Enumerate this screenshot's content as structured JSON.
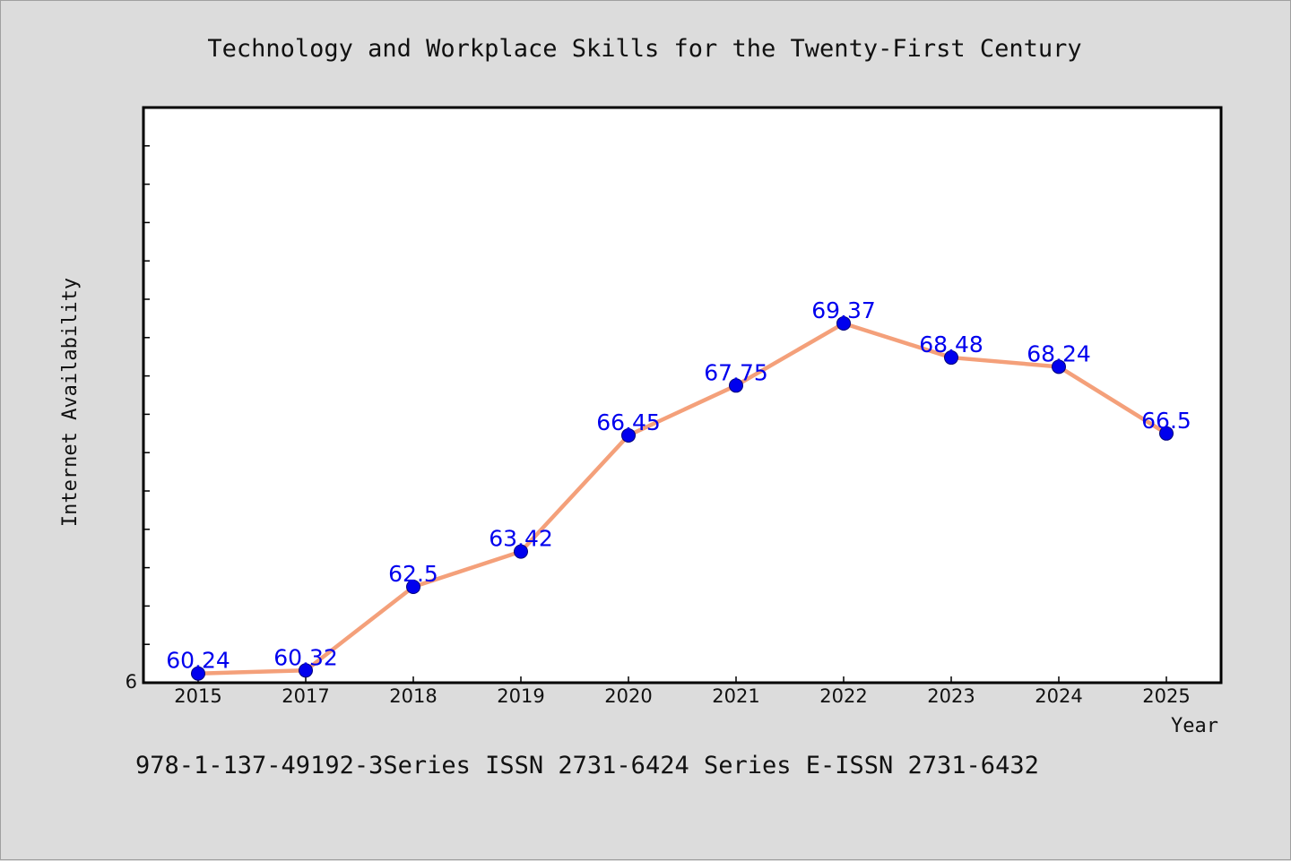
{
  "chart_data": {
    "type": "line",
    "title": "Technology and Workplace Skills for the Twenty-First Century",
    "xlabel": "Year",
    "ylabel": "Internet Availability",
    "categories": [
      "2015",
      "2017",
      "2018",
      "2019",
      "2020",
      "2021",
      "2022",
      "2023",
      "2024",
      "2025"
    ],
    "series": [
      {
        "values": [
          60.24,
          60.32,
          62.5,
          63.42,
          66.45,
          67.75,
          69.37,
          68.48,
          68.24,
          66.5
        ],
        "data_labels": [
          "60.24",
          "60.32",
          "62.5",
          "63.42",
          "66.45",
          "67.75",
          "69.37",
          "68.48",
          "68.24",
          "66.5"
        ]
      }
    ],
    "ylim": [
      60,
      75
    ],
    "y_tick_step": 1,
    "y_tick_label": "6",
    "grid": false,
    "legend": "none",
    "colors": {
      "line": "#f4a07a",
      "marker": "#0000ee",
      "data_label": "#0000ee",
      "plot_background": "#ffffff",
      "page_background": "#dcdcdc"
    }
  },
  "footer": {
    "text": "978-1-137-49192-3Series ISSN 2731-6424 Series E-ISSN 2731-6432"
  }
}
